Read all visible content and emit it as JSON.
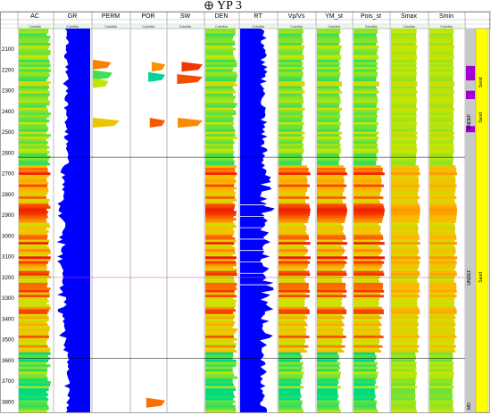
{
  "window": {
    "title": "YP 3"
  },
  "header": {
    "tracks": [
      {
        "label": "AC"
      },
      {
        "label": "GR"
      },
      {
        "label": "PERM"
      },
      {
        "label": "POR"
      },
      {
        "label": "SW"
      },
      {
        "label": "DEN"
      },
      {
        "label": "RT"
      },
      {
        "label": "Vp/Vs"
      },
      {
        "label": "YM_st"
      },
      {
        "label": "Pois_st"
      },
      {
        "label": "Smax"
      },
      {
        "label": "Smin"
      }
    ],
    "fill_label": "ColorMa"
  },
  "depth": {
    "ticks": [
      "2100",
      "2200",
      "2300",
      "2400",
      "2500",
      "2600",
      "2700",
      "2800",
      "2900",
      "3000",
      "3100",
      "3200",
      "3300",
      "3400",
      "3500",
      "3600",
      "3700",
      "3800"
    ],
    "top": "2000"
  },
  "right_panel": {
    "labels": [
      "UNDEF",
      "Sand",
      "Sand",
      "UNDEF",
      "Sand",
      "MD"
    ]
  },
  "colors": {
    "background": "#ffffff",
    "gr_fill": "#0000ff",
    "rt_fill": "#0000ff",
    "red": "#ff0000",
    "yellow": "#ffff00",
    "green": "#00e050",
    "cyan": "#00e0e0",
    "purple": "#a000d0",
    "gray_column": "#c8c8c8"
  }
}
